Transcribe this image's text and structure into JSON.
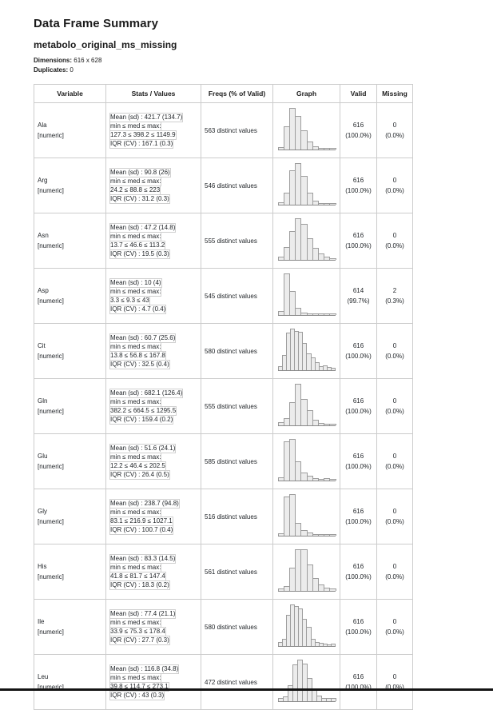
{
  "page": {
    "title": "Data Frame Summary",
    "subtitle": "metabolo_original_ms_missing",
    "dimensions_label": "Dimensions",
    "dimensions_value": "616 x 628",
    "duplicates_label": "Duplicates",
    "duplicates_value": "0"
  },
  "table": {
    "headers": [
      "Variable",
      "Stats / Values",
      "Freqs (% of Valid)",
      "Graph",
      "Valid",
      "Missing"
    ],
    "rows": [
      {
        "variable": "Ala",
        "type": "[numeric]",
        "stats": [
          "Mean (sd) : 421.7 (134.7)",
          "min ≤ med ≤ max:",
          "127.3 ≤ 398.2 ≤ 1149.9",
          "IQR (CV) : 167.1 (0.3)"
        ],
        "freqs": "563 distinct values",
        "valid": "616",
        "valid_pct": "(100.0%)",
        "missing": "0",
        "missing_pct": "(0.0%)",
        "hist": [
          0.03,
          0.55,
          1.0,
          0.8,
          0.45,
          0.18,
          0.06,
          0.02,
          0.01,
          0.01
        ]
      },
      {
        "variable": "Arg",
        "type": "[numeric]",
        "stats": [
          "Mean (sd) : 90.8 (26)",
          "min ≤ med ≤ max:",
          "24.2 ≤ 88.8 ≤ 223",
          "IQR (CV) : 31.2 (0.3)"
        ],
        "freqs": "546 distinct values",
        "valid": "616",
        "valid_pct": "(100.0%)",
        "missing": "0",
        "missing_pct": "(0.0%)",
        "hist": [
          0.03,
          0.28,
          0.82,
          1.0,
          0.68,
          0.28,
          0.08,
          0.02,
          0.01,
          0.01
        ]
      },
      {
        "variable": "Asn",
        "type": "[numeric]",
        "stats": [
          "Mean (sd) : 47.2 (14.8)",
          "min ≤ med ≤ max:",
          "13.7 ≤ 46.6 ≤ 113.2",
          "IQR (CV) : 19.5 (0.3)"
        ],
        "freqs": "555 distinct values",
        "valid": "616",
        "valid_pct": "(100.0%)",
        "missing": "0",
        "missing_pct": "(0.0%)",
        "hist": [
          0.06,
          0.3,
          0.68,
          1.0,
          0.86,
          0.5,
          0.28,
          0.13,
          0.05,
          0.02
        ]
      },
      {
        "variable": "Asp",
        "type": "[numeric]",
        "stats": [
          "Mean (sd) : 10 (4)",
          "min ≤ med ≤ max:",
          "3.3 ≤ 9.3 ≤ 43",
          "IQR (CV) : 4.7 (0.4)"
        ],
        "freqs": "545 distinct values",
        "valid": "614",
        "valid_pct": "(99.7%)",
        "missing": "2",
        "missing_pct": "(0.3%)",
        "hist": [
          0.08,
          1.0,
          0.57,
          0.15,
          0.04,
          0.02,
          0.01,
          0.01,
          0.01,
          0.01
        ]
      },
      {
        "variable": "Cit",
        "type": "[numeric]",
        "stats": [
          "Mean (sd) : 60.7 (25.6)",
          "min ≤ med ≤ max:",
          "13.8 ≤ 56.8 ≤ 167.8",
          "IQR (CV) : 32.5 (0.4)"
        ],
        "freqs": "580 distinct values",
        "valid": "616",
        "valid_pct": "(100.0%)",
        "missing": "0",
        "missing_pct": "(0.0%)",
        "hist": [
          0.08,
          0.35,
          0.9,
          1.0,
          0.95,
          0.92,
          0.65,
          0.4,
          0.3,
          0.18,
          0.08,
          0.1,
          0.05,
          0.03
        ]
      },
      {
        "variable": "Gln",
        "type": "[numeric]",
        "stats": [
          "Mean (sd) : 682.1 (126.4)",
          "min ≤ med ≤ max:",
          "382.2 ≤ 664.5 ≤ 1295.5",
          "IQR (CV) : 159.4 (0.2)"
        ],
        "freqs": "555 distinct values",
        "valid": "616",
        "valid_pct": "(100.0%)",
        "missing": "0",
        "missing_pct": "(0.0%)",
        "hist": [
          0.06,
          0.15,
          0.55,
          1.0,
          0.62,
          0.35,
          0.12,
          0.04,
          0.02,
          0.01
        ]
      },
      {
        "variable": "Glu",
        "type": "[numeric]",
        "stats": [
          "Mean (sd) : 51.6 (24.1)",
          "min ≤ med ≤ max:",
          "12.2 ≤ 46.4 ≤ 202.5",
          "IQR (CV) : 26.4 (0.5)"
        ],
        "freqs": "585 distinct values",
        "valid": "616",
        "valid_pct": "(100.0%)",
        "missing": "0",
        "missing_pct": "(0.0%)",
        "hist": [
          0.05,
          0.95,
          1.0,
          0.45,
          0.18,
          0.1,
          0.04,
          0.02,
          0.03,
          0.01
        ]
      },
      {
        "variable": "Gly",
        "type": "[numeric]",
        "stats": [
          "Mean (sd) : 238.7 (94.8)",
          "min ≤ med ≤ max:",
          "83.1 ≤ 216.9 ≤ 1027.1",
          "IQR (CV) : 100.7 (0.4)"
        ],
        "freqs": "516 distinct values",
        "valid": "616",
        "valid_pct": "(100.0%)",
        "missing": "0",
        "missing_pct": "(0.0%)",
        "hist": [
          0.04,
          0.95,
          1.0,
          0.3,
          0.12,
          0.05,
          0.01,
          0.01,
          0.01,
          0.01
        ]
      },
      {
        "variable": "His",
        "type": "[numeric]",
        "stats": [
          "Mean (sd) : 83.3 (14.5)",
          "min ≤ med ≤ max:",
          "41.8 ≤ 81.7 ≤ 147.4",
          "IQR (CV) : 18.3 (0.2)"
        ],
        "freqs": "561 distinct values",
        "valid": "616",
        "valid_pct": "(100.0%)",
        "missing": "0",
        "missing_pct": "(0.0%)",
        "hist": [
          0.03,
          0.1,
          0.55,
          1.0,
          1.0,
          0.62,
          0.3,
          0.13,
          0.06,
          0.03
        ]
      },
      {
        "variable": "Ile",
        "type": "[numeric]",
        "stats": [
          "Mean (sd) : 77.4 (21.1)",
          "min ≤ med ≤ max:",
          "33.9 ≤ 75.3 ≤ 178.4",
          "IQR (CV) : 27.7 (0.3)"
        ],
        "freqs": "580 distinct values",
        "valid": "616",
        "valid_pct": "(100.0%)",
        "missing": "0",
        "missing_pct": "(0.0%)",
        "hist": [
          0.08,
          0.15,
          0.75,
          1.0,
          0.97,
          0.9,
          0.65,
          0.45,
          0.16,
          0.07,
          0.05,
          0.04,
          0.02,
          0.04
        ]
      },
      {
        "variable": "Leu",
        "type": "[numeric]",
        "stats": [
          "Mean (sd) : 116.8 (34.8)",
          "min ≤ med ≤ max:",
          "39.8 ≤ 114.7 ≤ 273.1",
          "IQR (CV) : 43 (0.3)"
        ],
        "freqs": "472 distinct values",
        "valid": "616",
        "valid_pct": "(100.0%)",
        "missing": "0",
        "missing_pct": "(0.0%)",
        "hist": [
          0.05,
          0.1,
          0.37,
          0.88,
          1.0,
          0.9,
          0.55,
          0.27,
          0.12,
          0.06,
          0.06,
          0.05
        ]
      }
    ]
  }
}
